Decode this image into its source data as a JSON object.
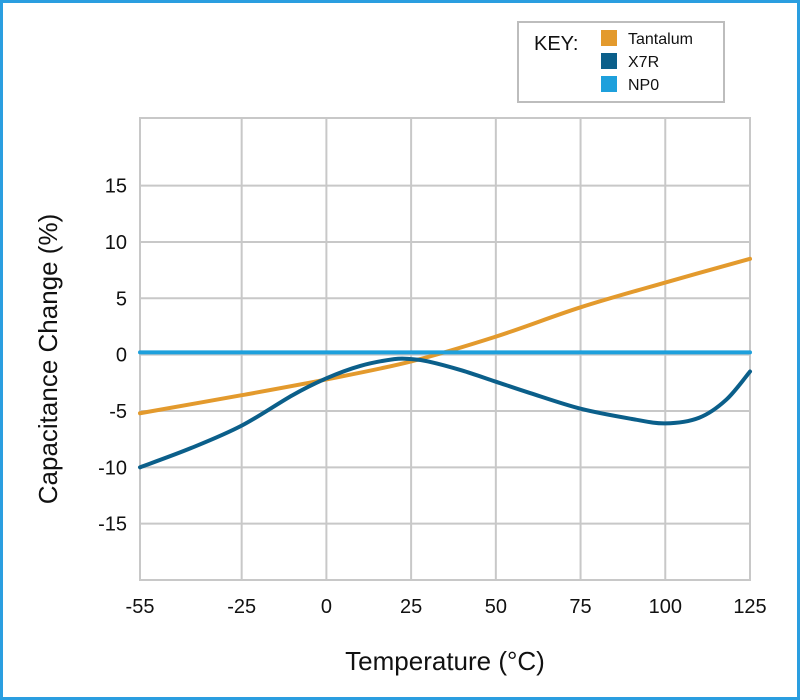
{
  "chart_data": {
    "type": "line",
    "title": "",
    "xlabel": "Temperature (°C)",
    "ylabel": "Capacitance Change (%)",
    "xlim": [
      -55,
      125
    ],
    "ylim": [
      -20,
      21
    ],
    "x_ticks": [
      -55,
      -25,
      0,
      25,
      50,
      75,
      100,
      125
    ],
    "y_ticks": [
      15,
      10,
      5,
      0,
      -5,
      -10,
      -15
    ],
    "x_tick_labels": [
      "-55",
      "-25",
      "0",
      "25",
      "50",
      "75",
      "100",
      "125"
    ],
    "y_tick_labels": [
      "15",
      "10",
      "5",
      "0",
      "-5",
      "-10",
      "-15"
    ],
    "grid": true,
    "legend": {
      "title": "KEY:",
      "placement": "top-right",
      "entries": [
        "Tantalum",
        "X7R",
        "NP0"
      ]
    },
    "series": [
      {
        "name": "Tantalum",
        "color": "#e39a2d",
        "x": [
          -55,
          -25,
          0,
          25,
          50,
          75,
          100,
          125
        ],
        "y": [
          -5.2,
          -3.6,
          -2.2,
          -0.6,
          1.6,
          4.2,
          6.4,
          8.5
        ]
      },
      {
        "name": "X7R",
        "color": "#0b5f8a",
        "x": [
          -55,
          -40,
          -25,
          -10,
          0,
          10,
          20,
          25,
          30,
          40,
          50,
          60,
          75,
          90,
          100,
          110,
          118,
          125
        ],
        "y": [
          -10,
          -8.3,
          -6.3,
          -3.6,
          -2.1,
          -1.0,
          -0.4,
          -0.4,
          -0.6,
          -1.4,
          -2.4,
          -3.4,
          -4.8,
          -5.7,
          -6.1,
          -5.6,
          -4.0,
          -1.5
        ]
      },
      {
        "name": "NP0",
        "color": "#1ea0dc",
        "x": [
          -55,
          125
        ],
        "y": [
          0.2,
          0.2
        ]
      }
    ]
  }
}
